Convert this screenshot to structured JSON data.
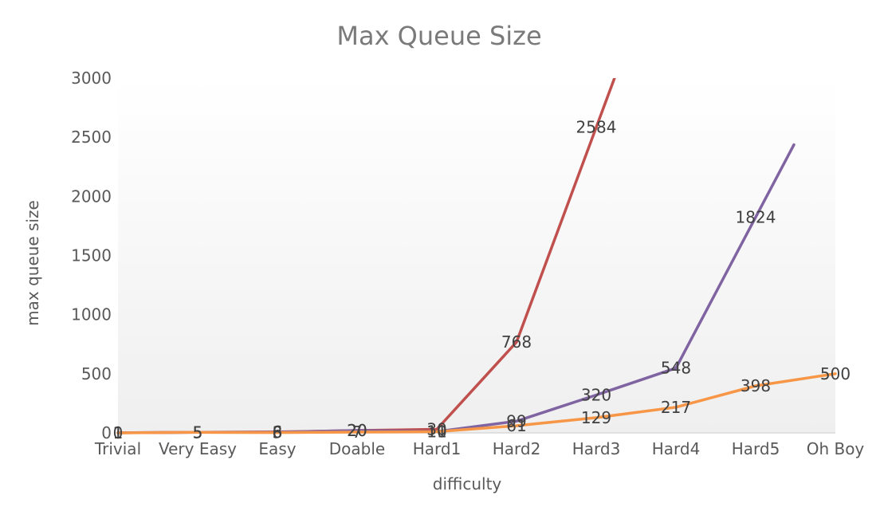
{
  "chart_data": {
    "type": "line",
    "title": "Max Queue Size",
    "xlabel": "difficulty",
    "ylabel": "max queue size",
    "categories": [
      "Trivial",
      "Very Easy",
      "Easy",
      "Doable",
      "Hard1",
      "Hard2",
      "Hard3",
      "Hard4",
      "Hard5",
      "Oh Boy"
    ],
    "ylim": [
      0,
      3000
    ],
    "yticks": [
      0,
      500,
      1000,
      1500,
      2000,
      2500,
      3000
    ],
    "grid": false,
    "legend": "none",
    "series": [
      {
        "color": "#c0504d",
        "values": [
          1,
          5,
          8,
          20,
          30,
          768,
          2584,
          null,
          null,
          null
        ]
      },
      {
        "color": "#8064a2",
        "values": [
          1,
          5,
          6,
          20,
          11,
          99,
          320,
          548,
          1824,
          null
        ]
      },
      {
        "color": "#f79646",
        "values": [
          0,
          5,
          3,
          7,
          10,
          61,
          129,
          217,
          398,
          500
        ]
      }
    ]
  }
}
